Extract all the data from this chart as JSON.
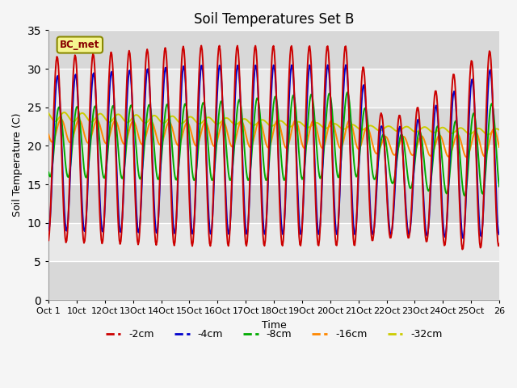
{
  "title": "Soil Temperatures Set B",
  "xlabel": "Time",
  "ylabel": "Soil Temperature (C)",
  "label_text": "BC_met",
  "ylim": [
    0,
    35
  ],
  "yticks": [
    0,
    5,
    10,
    15,
    20,
    25,
    30,
    35
  ],
  "xlim": [
    0,
    25
  ],
  "xtick_labels": [
    "Oct 1",
    "10ct",
    "12Oct",
    "13Oct",
    "14Oct",
    "15Oct",
    "16Oct",
    "17Oct",
    "18Oct",
    "19Oct",
    "20Oct",
    "21Oct",
    "22Oct",
    "23Oct",
    "24Oct",
    "25Oct",
    "26"
  ],
  "series_colors": {
    "-2cm": "#cc0000",
    "-4cm": "#0000cc",
    "-8cm": "#00aa00",
    "-16cm": "#ff8800",
    "-32cm": "#cccc00"
  },
  "legend_labels": [
    "-2cm",
    "-4cm",
    "-8cm",
    "-16cm",
    "-32cm"
  ],
  "background_color": "#e8e8e8",
  "plot_bg_light": "#f0f0f0",
  "plot_bg_dark": "#d8d8d8",
  "grid_color": "#ffffff",
  "title_fontsize": 12,
  "axis_fontsize": 9,
  "tick_fontsize": 8,
  "label_box_facecolor": "#f5f590",
  "label_box_edgecolor": "#888800",
  "label_text_color": "#880000"
}
